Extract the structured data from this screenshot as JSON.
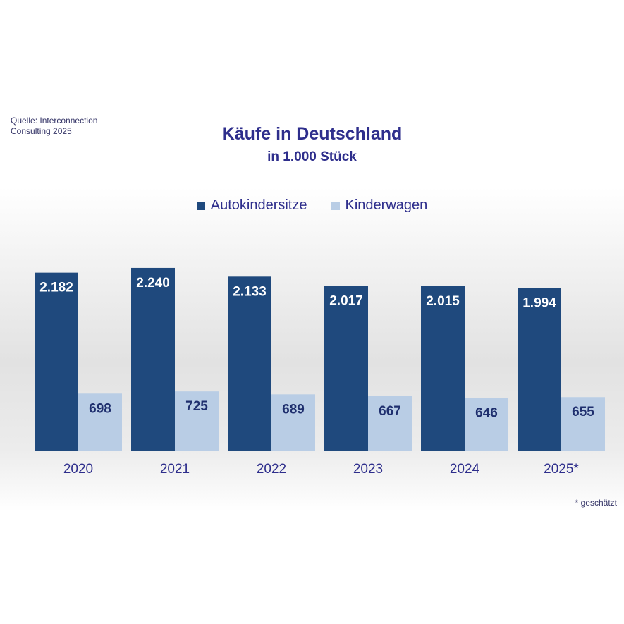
{
  "source_note": "Quelle: Interconnection Consulting 2025",
  "footnote": "* geschätzt",
  "colors": {
    "series1": "#1f497d",
    "series2": "#b9cde5",
    "text": "#2e2e8c"
  },
  "chart_data": {
    "type": "bar",
    "title": "Käufe in Deutschland",
    "subtitle": "in 1.000 Stück",
    "categories": [
      "2020",
      "2021",
      "2022",
      "2023",
      "2024",
      "2025*"
    ],
    "series": [
      {
        "name": "Autokindersitze",
        "values": [
          2182,
          2240,
          2133,
          2017,
          2015,
          1994
        ],
        "labels": [
          "2.182",
          "2.240",
          "2.133",
          "2.017",
          "2.015",
          "1.994"
        ]
      },
      {
        "name": "Kinderwagen",
        "values": [
          698,
          725,
          689,
          667,
          646,
          655
        ],
        "labels": [
          "698",
          "725",
          "689",
          "667",
          "646",
          "655"
        ]
      }
    ],
    "ylim": [
      0,
      2300
    ],
    "grid": false,
    "legend_position": "top-center"
  }
}
